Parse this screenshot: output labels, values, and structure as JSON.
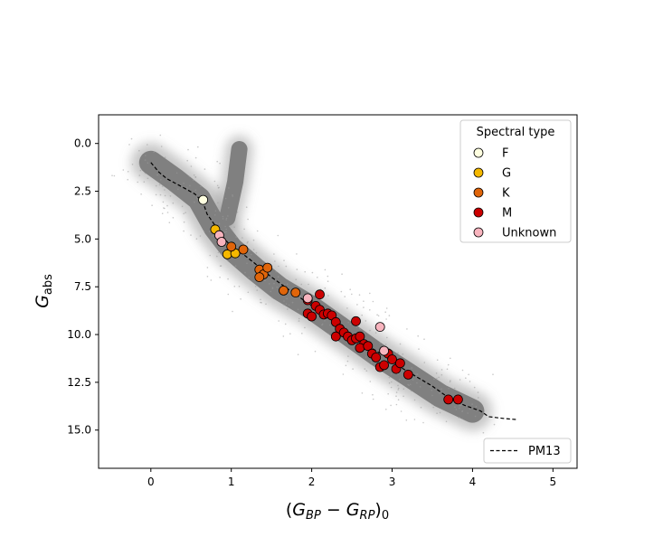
{
  "chart_data": {
    "type": "scatter",
    "xlabel_parts": {
      "open": "(",
      "base": "G",
      "sub1": "BP",
      "minus": " − ",
      "sub2": "RP",
      "close": ")",
      "sub0": "0"
    },
    "ylabel_parts": {
      "base": "G",
      "sub": "abs"
    },
    "xlim": [
      -0.65,
      5.3
    ],
    "ylim": [
      17.0,
      -1.5
    ],
    "y_inverted": true,
    "x_ticks": [
      {
        "v": 0,
        "label": "0"
      },
      {
        "v": 1,
        "label": "1"
      },
      {
        "v": 2,
        "label": "2"
      },
      {
        "v": 3,
        "label": "3"
      },
      {
        "v": 4,
        "label": "4"
      },
      {
        "v": 5,
        "label": "5"
      }
    ],
    "y_ticks": [
      {
        "v": 0,
        "label": "0.0"
      },
      {
        "v": 2.5,
        "label": "2.5"
      },
      {
        "v": 5,
        "label": "5.0"
      },
      {
        "v": 7.5,
        "label": "7.5"
      },
      {
        "v": 10,
        "label": "10.0"
      },
      {
        "v": 12.5,
        "label": "12.5"
      },
      {
        "v": 15,
        "label": "15.0"
      }
    ],
    "grid": false,
    "background_density": {
      "color": "#808080",
      "main_sequence_ridge": [
        [
          0.0,
          1.0
        ],
        [
          0.3,
          1.9
        ],
        [
          0.6,
          2.9
        ],
        [
          0.8,
          4.4
        ],
        [
          1.0,
          5.5
        ],
        [
          1.3,
          6.6
        ],
        [
          1.6,
          7.6
        ],
        [
          2.0,
          8.6
        ],
        [
          2.4,
          9.8
        ],
        [
          2.8,
          11.0
        ],
        [
          3.2,
          12.1
        ],
        [
          3.6,
          13.2
        ],
        [
          4.0,
          14.0
        ]
      ],
      "giant_branch": [
        [
          0.95,
          3.9
        ],
        [
          1.05,
          2.0
        ],
        [
          1.1,
          0.3
        ]
      ]
    },
    "reference_curve": {
      "name": "PM13",
      "style": "dashed",
      "color": "#000000",
      "points": [
        [
          0.0,
          1.0
        ],
        [
          0.1,
          1.5
        ],
        [
          0.2,
          1.85
        ],
        [
          0.4,
          2.3
        ],
        [
          0.55,
          2.65
        ],
        [
          0.65,
          3.1
        ],
        [
          0.7,
          3.7
        ],
        [
          0.8,
          4.3
        ],
        [
          0.9,
          4.9
        ],
        [
          1.0,
          5.4
        ],
        [
          1.15,
          5.8
        ],
        [
          1.3,
          6.3
        ],
        [
          1.5,
          7.0
        ],
        [
          1.7,
          7.6
        ],
        [
          1.9,
          8.2
        ],
        [
          2.1,
          8.8
        ],
        [
          2.3,
          9.4
        ],
        [
          2.5,
          10.0
        ],
        [
          2.7,
          10.6
        ],
        [
          2.9,
          11.1
        ],
        [
          3.1,
          11.7
        ],
        [
          3.3,
          12.2
        ],
        [
          3.5,
          12.7
        ],
        [
          3.7,
          13.3
        ],
        [
          3.9,
          13.7
        ],
        [
          4.1,
          14.0
        ],
        [
          4.2,
          14.3
        ],
        [
          4.4,
          14.4
        ],
        [
          4.55,
          14.45
        ]
      ]
    },
    "series": [
      {
        "name": "F",
        "color": "#ffffe0",
        "points": [
          [
            0.65,
            2.95
          ]
        ]
      },
      {
        "name": "G",
        "color": "#f5b800",
        "points": [
          [
            0.8,
            4.5
          ],
          [
            0.95,
            5.8
          ],
          [
            1.05,
            5.75
          ]
        ]
      },
      {
        "name": "K",
        "color": "#e0650a",
        "points": [
          [
            1.0,
            5.4
          ],
          [
            1.15,
            5.55
          ],
          [
            1.35,
            6.6
          ],
          [
            1.4,
            6.85
          ],
          [
            1.35,
            7.0
          ],
          [
            1.45,
            6.5
          ],
          [
            1.65,
            7.7
          ],
          [
            1.8,
            7.8
          ]
        ]
      },
      {
        "name": "M",
        "color": "#cc0000",
        "points": [
          [
            1.95,
            8.2
          ],
          [
            2.05,
            8.5
          ],
          [
            2.1,
            7.9
          ],
          [
            1.95,
            8.9
          ],
          [
            2.0,
            9.05
          ],
          [
            2.1,
            8.7
          ],
          [
            2.15,
            8.95
          ],
          [
            2.2,
            8.9
          ],
          [
            2.25,
            9.0
          ],
          [
            2.3,
            9.35
          ],
          [
            2.35,
            9.7
          ],
          [
            2.3,
            10.1
          ],
          [
            2.4,
            9.9
          ],
          [
            2.45,
            10.1
          ],
          [
            2.5,
            10.3
          ],
          [
            2.55,
            10.2
          ],
          [
            2.55,
            9.3
          ],
          [
            2.6,
            10.1
          ],
          [
            2.65,
            10.5
          ],
          [
            2.6,
            10.7
          ],
          [
            2.7,
            10.6
          ],
          [
            2.75,
            11.0
          ],
          [
            2.8,
            11.2
          ],
          [
            2.85,
            11.7
          ],
          [
            2.9,
            11.6
          ],
          [
            2.95,
            11.0
          ],
          [
            3.0,
            11.3
          ],
          [
            3.05,
            11.8
          ],
          [
            3.1,
            11.5
          ],
          [
            3.2,
            12.1
          ],
          [
            3.7,
            13.4
          ],
          [
            3.82,
            13.4
          ]
        ]
      },
      {
        "name": "Unknown",
        "color": "#f8b4be",
        "points": [
          [
            0.85,
            4.8
          ],
          [
            0.88,
            5.15
          ],
          [
            1.95,
            8.1
          ],
          [
            2.85,
            9.6
          ],
          [
            2.9,
            10.85
          ]
        ]
      }
    ],
    "legends": [
      {
        "title": "Spectral type",
        "placement": "top-right",
        "entries": [
          "F",
          "G",
          "K",
          "M",
          "Unknown"
        ]
      },
      {
        "placement": "bottom-right",
        "entries": [
          "PM13"
        ]
      }
    ]
  }
}
